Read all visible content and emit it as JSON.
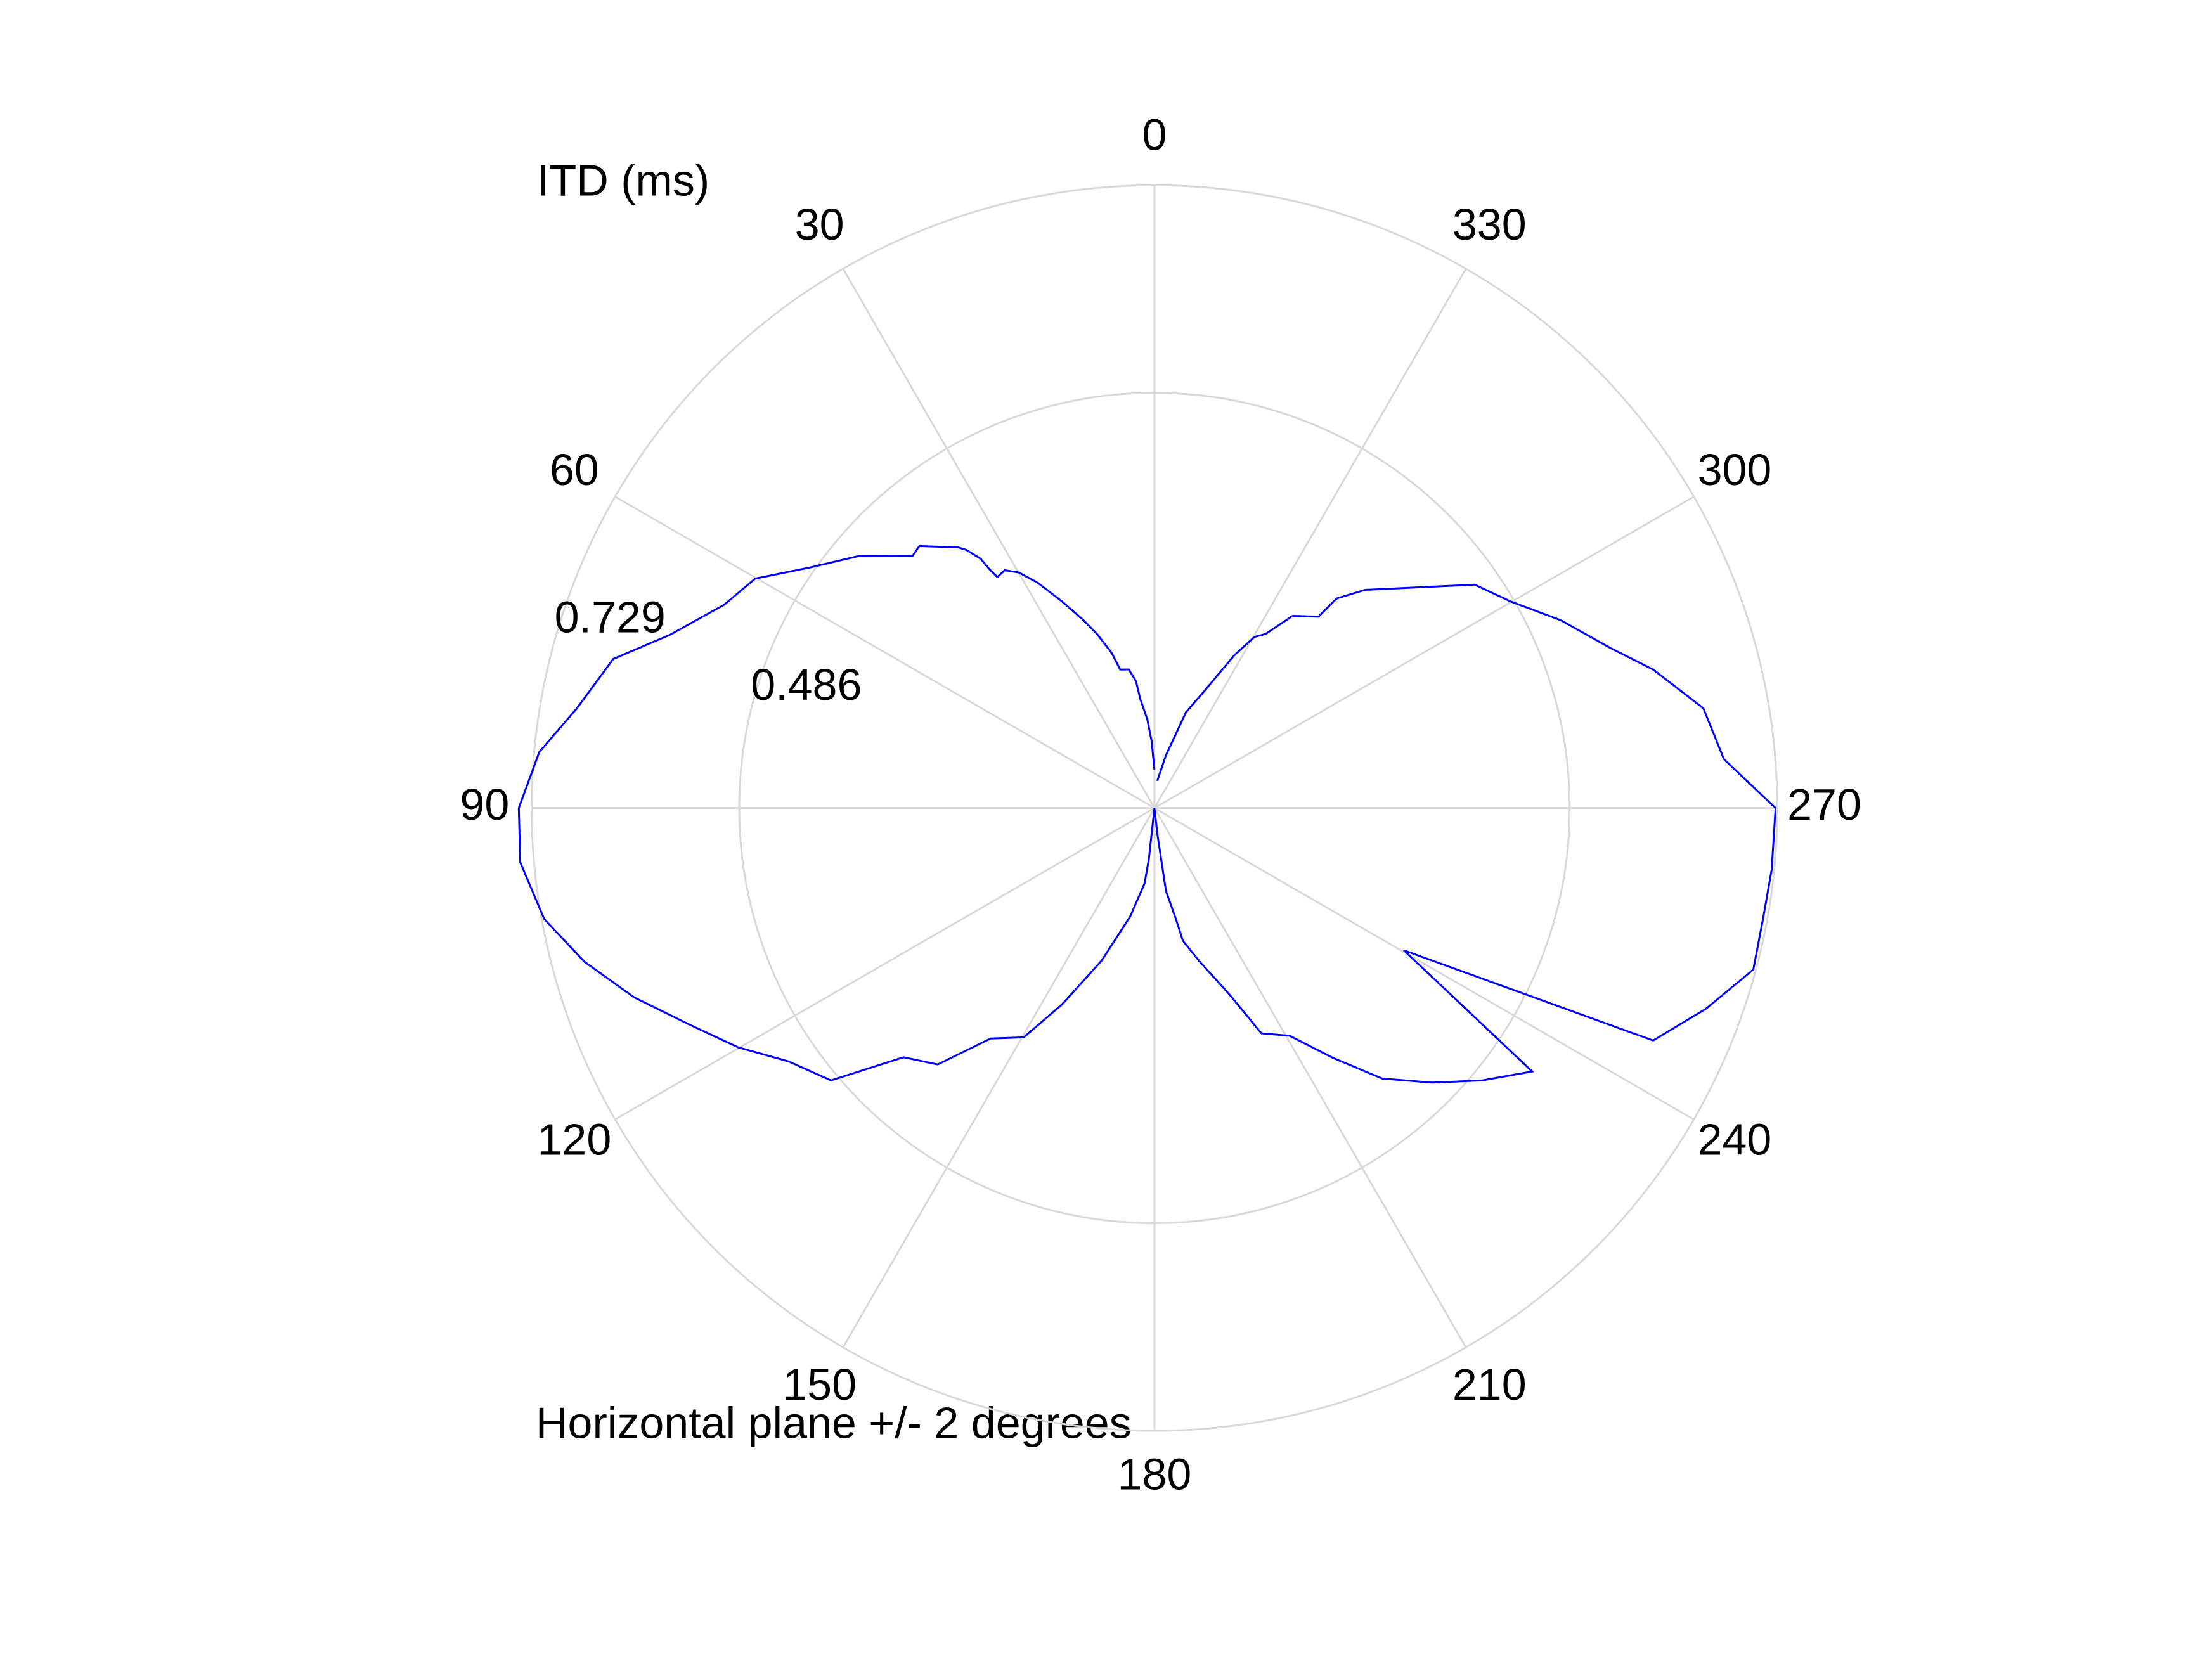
{
  "chart_data": {
    "type": "polar",
    "title": "ITD (ms)",
    "xlabel": "Horizontal plane +/- 2 degrees",
    "theta_zero": "top",
    "theta_direction": "counterclockwise",
    "thetaticks": [
      0,
      30,
      60,
      90,
      120,
      150,
      180,
      210,
      240,
      270,
      300,
      330
    ],
    "rlim": [
      0,
      0.729
    ],
    "rticks": [
      0.486,
      0.729
    ],
    "grid": true,
    "color": "#0000ff",
    "theta": [
      0,
      2.4,
      4.6,
      7.4,
      8.3,
      10.5,
      13.9,
      15.4,
      18.2,
      20.7,
      24.1,
      27.4,
      29.9,
      32.2,
      34.2,
      34.6,
      34.9,
      36.1,
      37.0,
      41.9,
      43.8,
      49.6,
      55.1,
      60.1,
      64.7,
      70.3,
      74.6,
      80.2,
      84.8,
      90,
      94.9,
      100.3,
      105.1,
      110.0,
      114.9,
      119.9,
      124.7,
      130.1,
      134.8,
      139.8,
      144.6,
      150.3,
      154.8,
      160.9,
      167.4,
      172.5,
      173.7,
      173.7,
      180,
      186.3,
      187.5,
      187.9,
      190.9,
      192.1,
      196.5,
      201.8,
      205.4,
      210.7,
      215.5,
      220.1,
      225.3,
      230.3,
      235.1,
      240.3,
      245.0,
      250.0,
      254.9,
      259.6,
      264.3,
      270,
      274.9,
      280.3,
      285.5,
      289.3,
      294.8,
      300.1,
      304.9,
      316.0,
      319.0,
      319.4,
      324.3,
      327.4,
      329.7,
      332.4,
      336.9,
      341.8,
      347.8,
      354
    ],
    "r": [
      0.045,
      0.078,
      0.104,
      0.129,
      0.15,
      0.165,
      0.167,
      0.188,
      0.214,
      0.235,
      0.265,
      0.297,
      0.318,
      0.329,
      0.327,
      0.338,
      0.356,
      0.374,
      0.382,
      0.412,
      0.409,
      0.455,
      0.492,
      0.539,
      0.557,
      0.602,
      0.657,
      0.686,
      0.723,
      0.744,
      0.745,
      0.726,
      0.691,
      0.648,
      0.601,
      0.562,
      0.521,
      0.495,
      0.414,
      0.393,
      0.331,
      0.309,
      0.254,
      0.189,
      0.13,
      0.089,
      0.06,
      0.03,
      0.0,
      0.03,
      0.064,
      0.098,
      0.132,
      0.159,
      0.188,
      0.234,
      0.292,
      0.31,
      0.359,
      0.414,
      0.457,
      0.499,
      0.539,
      0.336,
      0.644,
      0.687,
      0.726,
      0.724,
      0.726,
      0.727,
      0.669,
      0.653,
      0.606,
      0.566,
      0.524,
      0.482,
      0.457,
      0.355,
      0.325,
      0.295,
      0.277,
      0.242,
      0.232,
      0.202,
      0.149,
      0.118,
      0.063,
      0.032
    ]
  }
}
